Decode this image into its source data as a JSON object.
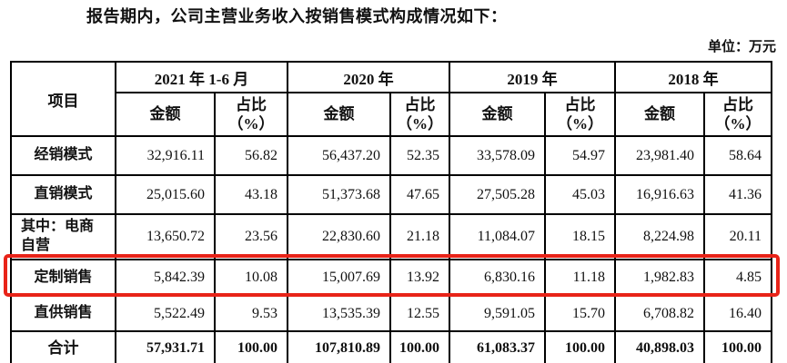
{
  "page": {
    "intro_text": "报告期内，公司主营业务收入按销售模式构成情况如下：",
    "unit_label": "单位：万元"
  },
  "table": {
    "item_header": "项目",
    "year_groups": [
      "2021 年 1-6 月",
      "2020 年",
      "2019 年",
      "2018 年"
    ],
    "amount_header": "金额",
    "ratio_header_line1": "占比",
    "ratio_header_line2": "（%）",
    "highlight_color": "#e82318",
    "rows": [
      {
        "label": "经销模式",
        "values": [
          "32,916.11",
          "56.82",
          "56,437.20",
          "52.35",
          "33,578.09",
          "54.97",
          "23,981.40",
          "58.64"
        ]
      },
      {
        "label": "直销模式",
        "values": [
          "25,015.60",
          "43.18",
          "51,373.68",
          "47.65",
          "27,505.28",
          "45.03",
          "16,916.63",
          "41.36"
        ]
      },
      {
        "label": "其中：电商\n自营",
        "sub": true,
        "values": [
          "13,650.72",
          "23.56",
          "22,830.60",
          "21.18",
          "11,084.07",
          "18.15",
          "8,224.98",
          "20.11"
        ]
      },
      {
        "label": "定制销售",
        "highlighted": true,
        "values": [
          "5,842.39",
          "10.08",
          "15,007.69",
          "13.92",
          "6,830.16",
          "11.18",
          "1,982.83",
          "4.85"
        ]
      },
      {
        "label": "直供销售",
        "values": [
          "5,522.49",
          "9.53",
          "13,535.39",
          "12.55",
          "9,591.05",
          "15.70",
          "6,708.82",
          "16.40"
        ]
      },
      {
        "label": "合计",
        "total": true,
        "values": [
          "57,931.71",
          "100.00",
          "107,810.89",
          "100.00",
          "61,083.37",
          "100.00",
          "40,898.03",
          "100.00"
        ]
      }
    ]
  }
}
